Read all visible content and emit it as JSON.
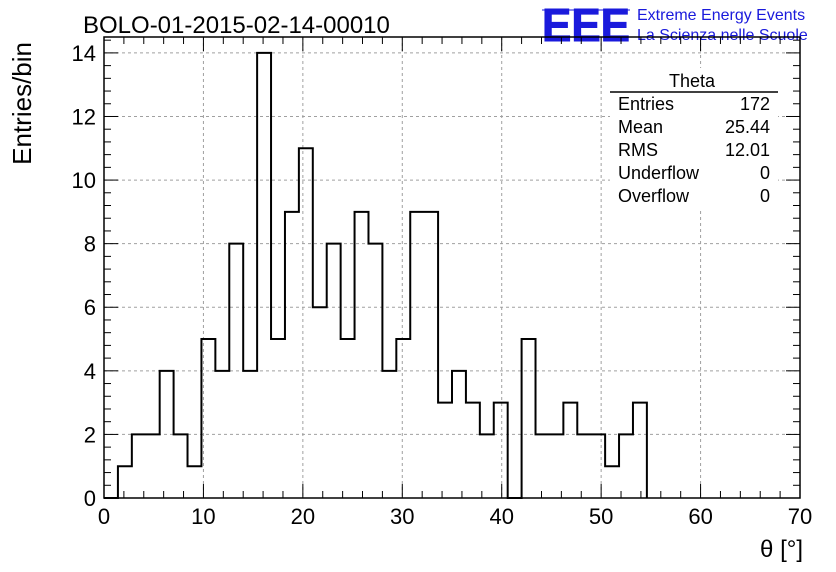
{
  "header": {
    "run_title": "BOLO-01-2015-02-14-00010",
    "logo_text": "EEE",
    "logo_line1": "Extreme Energy Events",
    "logo_line2": "La Scienza nelle Scuole",
    "logo_color": "#1a1adc"
  },
  "stats": {
    "title": "Theta",
    "rows": [
      {
        "label": "Entries",
        "value": "172"
      },
      {
        "label": "Mean",
        "value": "25.44"
      },
      {
        "label": "RMS",
        "value": "12.01"
      },
      {
        "label": "Underflow",
        "value": "0"
      },
      {
        "label": "Overflow",
        "value": "0"
      }
    ]
  },
  "chart_data": {
    "type": "histogram",
    "xlabel": "θ [°]",
    "ylabel": "Entries/bin",
    "xlim": [
      0,
      70
    ],
    "ylim": [
      0,
      14.5
    ],
    "x_ticks": [
      0,
      10,
      20,
      30,
      40,
      50,
      60,
      70
    ],
    "y_ticks": [
      0,
      2,
      4,
      6,
      8,
      10,
      12,
      14
    ],
    "grid": true,
    "bin_edges": [
      0,
      1.4,
      2.8,
      4.2,
      5.6,
      7.0,
      8.4,
      9.8,
      11.2,
      12.6,
      14.0,
      15.4,
      16.8,
      18.2,
      19.6,
      21.0,
      22.4,
      23.8,
      25.2,
      26.6,
      28.0,
      29.4,
      30.8,
      32.2,
      33.6,
      35.0,
      36.4,
      37.8,
      39.2,
      40.6,
      42.0,
      43.4,
      44.8,
      46.2,
      47.6,
      49.0,
      50.4,
      51.8,
      53.2,
      54.6
    ],
    "counts": [
      0,
      1,
      2,
      2,
      4,
      2,
      1,
      5,
      4,
      8,
      4,
      14,
      5,
      9,
      11,
      6,
      8,
      5,
      9,
      8,
      4,
      5,
      9,
      9,
      3,
      4,
      3,
      2,
      3,
      0,
      5,
      2,
      2,
      3,
      2,
      2,
      1,
      2,
      3
    ]
  }
}
